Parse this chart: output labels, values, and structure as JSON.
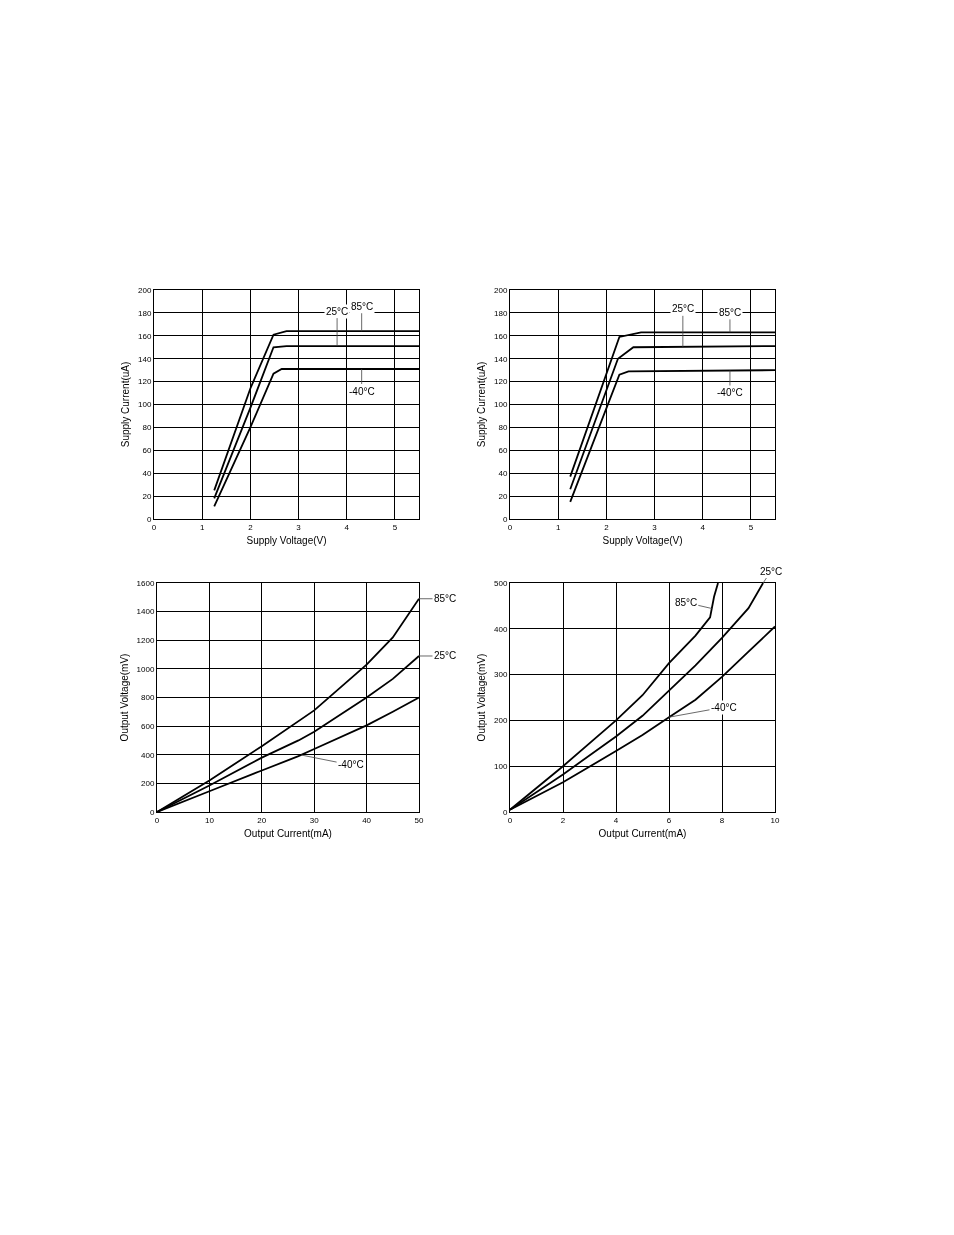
{
  "chart_data": [
    {
      "type": "line",
      "xlabel": "Supply Voltage(V)",
      "ylabel": "Supply Current(uA)",
      "xlim": [
        0,
        5.5
      ],
      "xticks": [
        0,
        1,
        2,
        3,
        4,
        5
      ],
      "ylim": [
        0,
        200
      ],
      "yticks": [
        0,
        20,
        40,
        60,
        80,
        100,
        120,
        140,
        160,
        180,
        200
      ],
      "grid": true,
      "legend": false,
      "marker": "none",
      "line_style": "solid",
      "series": [
        {
          "name": "85°C",
          "color": "#000000",
          "x": [
            1.25,
            2,
            2.48,
            2.75,
            5.5
          ],
          "values": [
            25,
            114,
            161,
            164,
            164
          ]
        },
        {
          "name": "25°C",
          "color": "#000000",
          "x": [
            1.25,
            2,
            2.48,
            2.75,
            5.5
          ],
          "values": [
            18,
            97,
            150,
            151,
            151
          ]
        },
        {
          "name": "-40°C",
          "color": "#000000",
          "x": [
            1.25,
            2,
            2.48,
            2.65,
            5.5
          ],
          "values": [
            11,
            80,
            127,
            131,
            131
          ]
        }
      ]
    },
    {
      "type": "line",
      "xlabel": "Supply Voltage(V)",
      "ylabel": "Supply Current(uA)",
      "xlim": [
        0,
        5.5
      ],
      "xticks": [
        0,
        1,
        2,
        3,
        4,
        5
      ],
      "ylim": [
        0,
        200
      ],
      "yticks": [
        0,
        20,
        40,
        60,
        80,
        100,
        120,
        140,
        160,
        180,
        200
      ],
      "grid": true,
      "legend": false,
      "marker": "none",
      "line_style": "solid",
      "series": [
        {
          "name": "85°C",
          "color": "#000000",
          "x": [
            1.25,
            2.27,
            2.72,
            5.5
          ],
          "values": [
            37,
            159,
            163,
            163
          ]
        },
        {
          "name": "25°C",
          "color": "#000000",
          "x": [
            1.25,
            2.24,
            2.56,
            5.5
          ],
          "values": [
            26,
            140,
            150,
            151
          ]
        },
        {
          "name": "-40°C",
          "color": "#000000",
          "x": [
            1.25,
            2.27,
            2.46,
            5.5
          ],
          "values": [
            15,
            126,
            129,
            130
          ]
        }
      ]
    },
    {
      "type": "line",
      "xlabel": "Output Current(mA)",
      "ylabel": "Output Voltage(mV)",
      "xlim": [
        0,
        50
      ],
      "xticks": [
        0,
        10,
        20,
        30,
        40,
        50
      ],
      "ylim": [
        0,
        1600
      ],
      "yticks": [
        0,
        200,
        400,
        600,
        800,
        1000,
        1200,
        1400,
        1600
      ],
      "grid": true,
      "legend": false,
      "marker": "none",
      "line_style": "solid",
      "series": [
        {
          "name": "85°C",
          "color": "#000000",
          "x": [
            0,
            10,
            20,
            30,
            40,
            45,
            50
          ],
          "values": [
            0,
            220,
            460,
            710,
            1030,
            1220,
            1490
          ]
        },
        {
          "name": "25°C",
          "color": "#000000",
          "x": [
            0,
            10,
            20,
            27,
            30,
            40,
            45,
            50
          ],
          "values": [
            0,
            185,
            380,
            500,
            560,
            800,
            930,
            1090
          ]
        },
        {
          "name": "-40°C",
          "color": "#000000",
          "x": [
            0,
            10,
            20,
            27,
            30,
            40,
            45,
            50
          ],
          "values": [
            0,
            145,
            290,
            390,
            440,
            605,
            700,
            800
          ]
        }
      ]
    },
    {
      "type": "line",
      "xlabel": "Output Current(mA)",
      "ylabel": "Output Voltage(mV)",
      "xlim": [
        0,
        10
      ],
      "xticks": [
        0,
        2,
        4,
        6,
        8,
        10
      ],
      "ylim": [
        0,
        500
      ],
      "yticks": [
        0,
        100,
        200,
        300,
        400,
        500
      ],
      "grid": true,
      "legend": false,
      "marker": "none",
      "line_style": "solid",
      "series": [
        {
          "name": "85°C",
          "color": "#000000",
          "x": [
            0,
            2,
            4,
            5,
            6,
            7,
            7.55,
            7.7,
            7.85
          ],
          "values": [
            5,
            100,
            200,
            255,
            325,
            385,
            425,
            470,
            500
          ]
        },
        {
          "name": "25°C",
          "color": "#000000",
          "x": [
            0,
            2,
            4,
            5,
            6,
            7,
            8,
            9,
            9.55
          ],
          "values": [
            5,
            82,
            165,
            210,
            265,
            320,
            380,
            445,
            500
          ]
        },
        {
          "name": "-40°C",
          "color": "#000000",
          "x": [
            0,
            2,
            4,
            5,
            6,
            7,
            8,
            9,
            10
          ],
          "values": [
            5,
            65,
            133,
            168,
            207,
            245,
            295,
            350,
            405
          ]
        }
      ]
    }
  ]
}
